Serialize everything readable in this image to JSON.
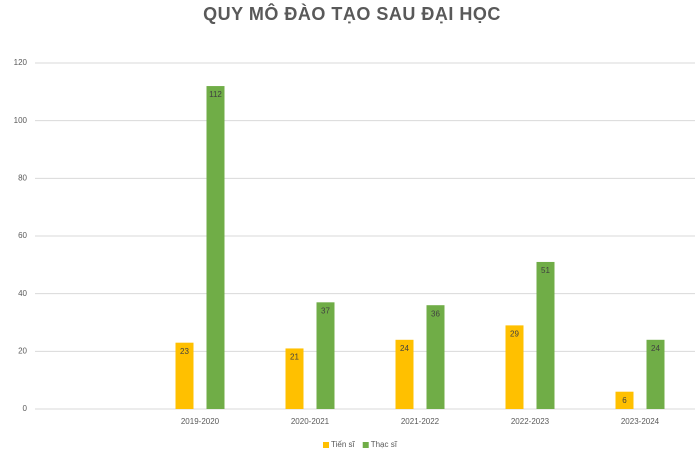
{
  "chart_data": {
    "type": "bar",
    "title": "QUY MÔ ĐÀO TẠO SAU ĐẠI HỌC",
    "categories": [
      null,
      "2019-2020",
      "2020-2021",
      "2021-2022",
      "2022-2023",
      "2023-2024"
    ],
    "series": [
      {
        "name": "Tiến sĩ",
        "color": "#ffc000",
        "values": [
          null,
          23,
          21,
          24,
          29,
          6
        ]
      },
      {
        "name": "Thạc sĩ",
        "color": "#70ad47",
        "values": [
          null,
          112,
          37,
          36,
          51,
          24
        ]
      }
    ],
    "ylim": [
      0,
      120
    ],
    "yticks": [
      0,
      20,
      40,
      60,
      80,
      100,
      120
    ],
    "grid": true,
    "legend": "bottom",
    "data_labels": true
  }
}
